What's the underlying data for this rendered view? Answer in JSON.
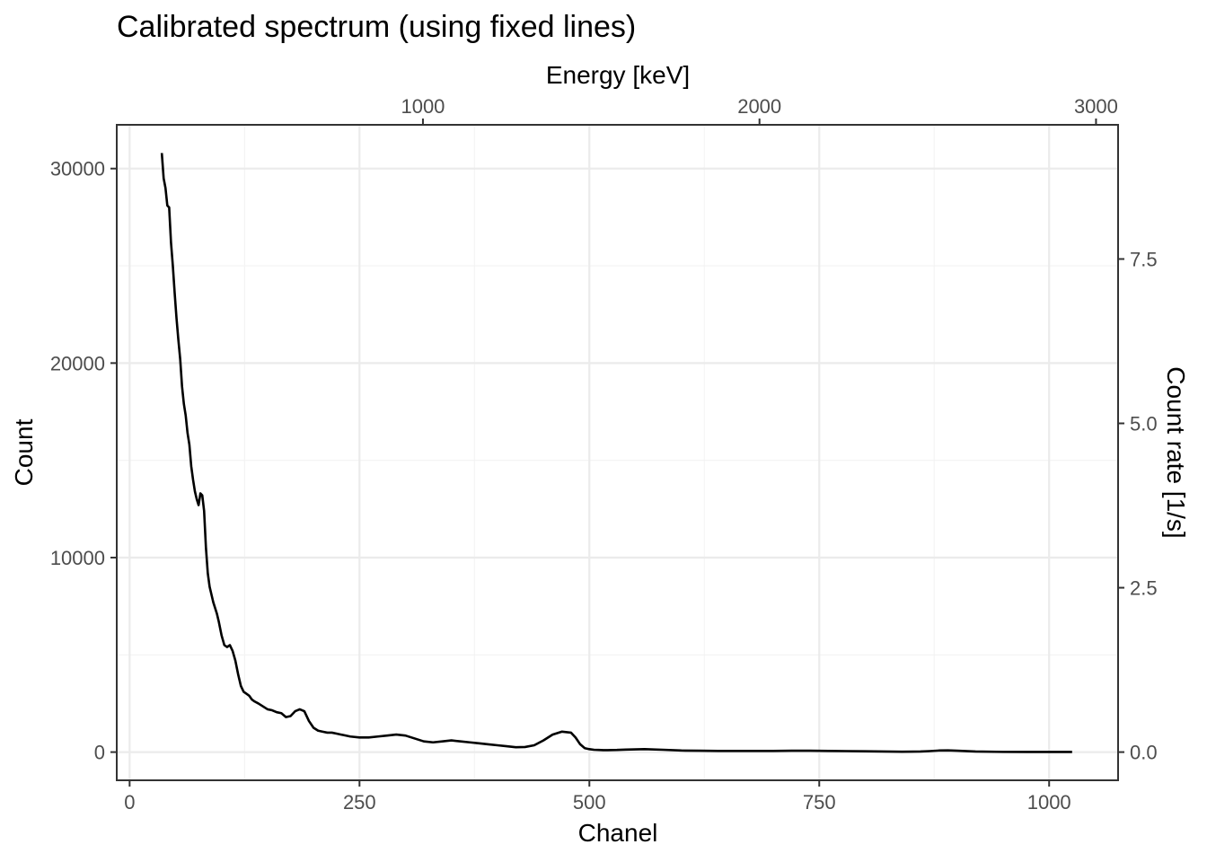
{
  "chart_data": {
    "type": "line",
    "title": "Calibrated spectrum (using fixed lines)",
    "xlabel": "Chanel",
    "ylabel": "Count",
    "x2label": "Energy [keV]",
    "y2label": "Count rate [1/s]",
    "xlim": [
      -14,
      1075
    ],
    "ylim": [
      -1450,
      32250
    ],
    "x_ticks": [
      0,
      250,
      500,
      750,
      1000
    ],
    "y_ticks": [
      0,
      10000,
      20000,
      30000
    ],
    "x2_ticks": [
      1000,
      2000,
      3000
    ],
    "x2_tick_positions_chanel": [
      319,
      685,
      1051
    ],
    "y2_ticks": [
      "0.0",
      "2.5",
      "5.0",
      "7.5"
    ],
    "y2_tick_positions_count": [
      0,
      8450,
      16900,
      25350
    ],
    "grid": true,
    "line_color": "#000000",
    "series": [
      {
        "x": [
          35,
          37,
          39,
          41,
          43,
          45,
          47,
          49,
          51,
          53,
          55,
          57,
          59,
          61,
          63,
          65,
          67,
          69,
          71,
          73,
          75,
          77,
          79,
          81,
          83,
          85,
          87,
          89,
          91,
          93,
          95,
          97,
          100,
          103,
          106,
          109,
          112,
          115,
          118,
          121,
          124,
          127,
          130,
          133,
          136,
          140,
          145,
          150,
          155,
          160,
          165,
          170,
          175,
          180,
          185,
          190,
          195,
          200,
          205,
          210,
          215,
          220,
          225,
          230,
          240,
          250,
          260,
          270,
          280,
          290,
          300,
          310,
          320,
          330,
          340,
          350,
          360,
          370,
          380,
          390,
          400,
          410,
          420,
          430,
          440,
          450,
          460,
          470,
          480,
          485,
          490,
          495,
          500,
          505,
          510,
          515,
          520,
          530,
          540,
          560,
          580,
          600,
          620,
          640,
          660,
          680,
          700,
          720,
          740,
          760,
          780,
          800,
          820,
          840,
          860,
          870,
          880,
          890,
          900,
          920,
          950,
          1000,
          1025
        ],
        "values": [
          30800,
          29500,
          29000,
          28100,
          28000,
          26200,
          25000,
          23600,
          22300,
          21200,
          20200,
          18800,
          17900,
          17300,
          16400,
          15800,
          14700,
          14000,
          13400,
          13000,
          12700,
          13300,
          13200,
          12400,
          10500,
          9200,
          8500,
          8100,
          7700,
          7400,
          7100,
          6700,
          6000,
          5500,
          5400,
          5500,
          5200,
          4700,
          4000,
          3400,
          3100,
          3000,
          2900,
          2700,
          2600,
          2500,
          2350,
          2200,
          2150,
          2050,
          2000,
          1800,
          1850,
          2100,
          2200,
          2100,
          1600,
          1250,
          1100,
          1050,
          1000,
          1000,
          950,
          900,
          800,
          750,
          750,
          800,
          850,
          900,
          850,
          700,
          550,
          500,
          550,
          600,
          550,
          500,
          450,
          400,
          350,
          300,
          250,
          260,
          350,
          600,
          900,
          1050,
          1000,
          750,
          400,
          200,
          150,
          120,
          110,
          100,
          100,
          110,
          130,
          150,
          120,
          80,
          70,
          60,
          60,
          60,
          60,
          70,
          70,
          60,
          50,
          40,
          30,
          20,
          30,
          50,
          80,
          90,
          70,
          30,
          10,
          5,
          5
        ]
      }
    ]
  }
}
